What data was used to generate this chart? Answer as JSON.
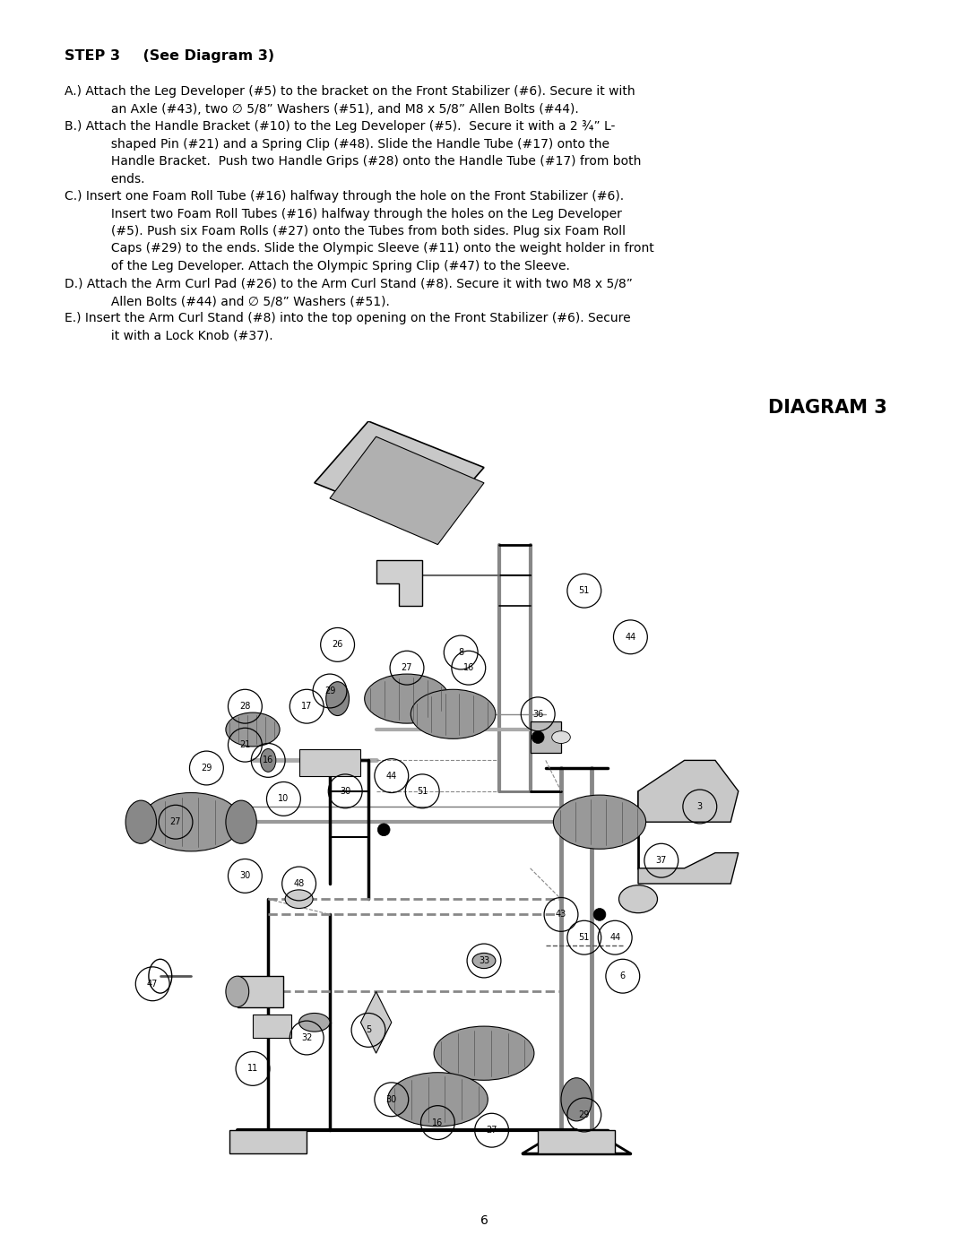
{
  "bg_color": "#ffffff",
  "page_width": 10.8,
  "page_height": 13.97,
  "dpi": 100,
  "title_bold": "STEP 3",
  "title_rest": "    (See Diagram 3)",
  "diagram_title": "DIAGRAM 3",
  "page_number": "6",
  "text_color": "#000000",
  "line_A1": "A.) Attach the Leg Developer (#5) to the bracket on the Front Stabilizer (#6). Secure it with",
  "line_A2": "     an Axle (#43), two ∅ 5/8” Washers (#51), and M8 x 5/8” Allen Bolts (#44).",
  "line_B1": "B.) Attach the Handle Bracket (#10) to the Leg Developer (#5).  Secure it with a 2 ¾” L-",
  "line_B2": "     shaped Pin (#21) and a Spring Clip (#48). Slide the Handle Tube (#17) onto the",
  "line_B3": "     Handle Bracket.  Push two Handle Grips (#28) onto the Handle Tube (#17) from both",
  "line_B4": "     ends.",
  "line_C1": "C.) Insert one Foam Roll Tube (#16) halfway through the hole on the Front Stabilizer (#6).",
  "line_C2": "     Insert two Foam Roll Tubes (#16) halfway through the holes on the Leg Developer",
  "line_C3": "     (#5). Push six Foam Rolls (#27) onto the Tubes from both sides. Plug six Foam Roll",
  "line_C4": "     Caps (#29) to the ends. Slide the Olympic Sleeve (#11) onto the weight holder in front",
  "line_C5": "     of the Leg Developer. Attach the Olympic Spring Clip (#47) to the Sleeve.",
  "line_D1": "D.) Attach the Arm Curl Pad (#26) to the Arm Curl Stand (#8). Secure it with two M8 x 5/8”",
  "line_D2": "     Allen Bolts (#44) and ∅ 5/8” Washers (#51).",
  "line_E1": "E.) Insert the Arm Curl Stand (#8) into the top opening on the Front Stabilizer (#6). Secure",
  "line_E2": "     it with a Lock Knob (#37)."
}
